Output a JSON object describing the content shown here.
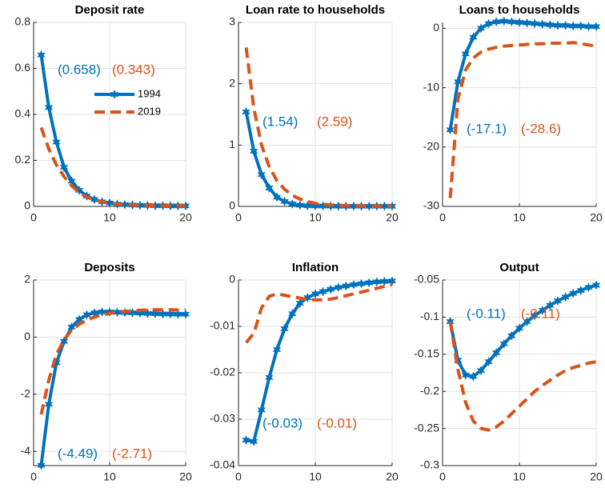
{
  "chart_data": [
    {
      "type": "line",
      "title": "Deposit rate",
      "x": [
        1,
        2,
        3,
        4,
        5,
        6,
        7,
        8,
        9,
        10,
        11,
        12,
        13,
        14,
        15,
        16,
        17,
        18,
        19,
        20
      ],
      "xlim": [
        0,
        20
      ],
      "xticks": [
        0,
        10,
        20
      ],
      "ylim": [
        0,
        0.8
      ],
      "yticks": [
        0,
        0.2,
        0.4,
        0.6,
        0.8
      ],
      "grid": true,
      "legend": "right",
      "series": [
        {
          "name": "1994",
          "color": "#0072BD",
          "marker": "star",
          "linestyle": "solid",
          "values": [
            0.658,
            0.43,
            0.28,
            0.17,
            0.11,
            0.07,
            0.045,
            0.03,
            0.02,
            0.015,
            0.01,
            0.008,
            0.006,
            0.005,
            0.004,
            0.003,
            0.003,
            0.002,
            0.002,
            0.002
          ]
        },
        {
          "name": "2019",
          "color": "#D95319",
          "linestyle": "dashed",
          "values": [
            0.343,
            0.25,
            0.18,
            0.13,
            0.09,
            0.06,
            0.04,
            0.03,
            0.02,
            0.015,
            0.01,
            0.008,
            0.006,
            0.005,
            0.004,
            0.003,
            0.003,
            0.002,
            0.002,
            0.002
          ]
        }
      ],
      "annotations": [
        "(0.658)",
        "(0.343)"
      ]
    },
    {
      "type": "line",
      "title": "Loan rate to households",
      "x": [
        1,
        2,
        3,
        4,
        5,
        6,
        7,
        8,
        9,
        10,
        11,
        12,
        13,
        14,
        15,
        16,
        17,
        18,
        19,
        20
      ],
      "xlim": [
        0,
        20
      ],
      "xticks": [
        0,
        10,
        20
      ],
      "ylim": [
        0,
        3
      ],
      "yticks": [
        0,
        1,
        2,
        3
      ],
      "grid": true,
      "series": [
        {
          "color": "#0072BD",
          "marker": "star",
          "linestyle": "solid",
          "values": [
            1.54,
            0.9,
            0.52,
            0.3,
            0.15,
            0.08,
            0.04,
            0.02,
            0.01,
            0.008,
            0.006,
            0.005,
            0.004,
            0.003,
            0.003,
            0.002,
            0.002,
            0.002,
            0.002,
            0.002
          ]
        },
        {
          "color": "#D95319",
          "linestyle": "dashed",
          "values": [
            2.59,
            1.6,
            1.0,
            0.65,
            0.42,
            0.28,
            0.18,
            0.12,
            0.08,
            0.05,
            0.035,
            0.025,
            0.02,
            0.015,
            0.01,
            0.008,
            0.006,
            0.005,
            0.004,
            0.003
          ]
        }
      ],
      "annotations": [
        "(1.54)",
        "(2.59)"
      ]
    },
    {
      "type": "line",
      "title": "Loans to households",
      "x": [
        1,
        2,
        3,
        4,
        5,
        6,
        7,
        8,
        9,
        10,
        11,
        12,
        13,
        14,
        15,
        16,
        17,
        18,
        19,
        20
      ],
      "xlim": [
        0,
        20
      ],
      "xticks": [
        0,
        10,
        20
      ],
      "ylim": [
        -30,
        1
      ],
      "yticks": [
        -30,
        -20,
        -10,
        0
      ],
      "grid": true,
      "series": [
        {
          "color": "#0072BD",
          "marker": "star",
          "linestyle": "solid",
          "values": [
            -17.1,
            -9,
            -4.3,
            -1.5,
            0,
            0.8,
            1.1,
            1.2,
            1.1,
            1.0,
            0.9,
            0.8,
            0.7,
            0.6,
            0.5,
            0.5,
            0.4,
            0.4,
            0.3,
            0.3
          ]
        },
        {
          "color": "#D95319",
          "linestyle": "dashed",
          "values": [
            -28.6,
            -12,
            -7,
            -5,
            -4,
            -3.5,
            -3.2,
            -3,
            -2.9,
            -2.8,
            -2.7,
            -2.6,
            -2.6,
            -2.5,
            -2.5,
            -2.5,
            -2.4,
            -2.6,
            -2.8,
            -3
          ]
        }
      ],
      "annotations": [
        "(-17.1)",
        "(-28.6)"
      ]
    },
    {
      "type": "line",
      "title": "Deposits",
      "x": [
        1,
        2,
        3,
        4,
        5,
        6,
        7,
        8,
        9,
        10,
        11,
        12,
        13,
        14,
        15,
        16,
        17,
        18,
        19,
        20
      ],
      "xlim": [
        0,
        20
      ],
      "xticks": [
        0,
        10,
        20
      ],
      "ylim": [
        -4.5,
        2
      ],
      "yticks": [
        -4,
        -2,
        0,
        2
      ],
      "grid": true,
      "series": [
        {
          "color": "#0072BD",
          "marker": "star",
          "linestyle": "solid",
          "values": [
            -4.49,
            -2.35,
            -0.9,
            -0.15,
            0.35,
            0.62,
            0.78,
            0.85,
            0.88,
            0.88,
            0.87,
            0.86,
            0.85,
            0.84,
            0.83,
            0.82,
            0.81,
            0.81,
            0.8,
            0.8
          ]
        },
        {
          "color": "#D95319",
          "linestyle": "dashed",
          "values": [
            -2.71,
            -1.5,
            -0.6,
            -0.1,
            0.25,
            0.45,
            0.6,
            0.7,
            0.78,
            0.83,
            0.87,
            0.9,
            0.92,
            0.94,
            0.95,
            0.96,
            0.96,
            0.96,
            0.95,
            0.95
          ]
        }
      ],
      "annotations": [
        "(-4.49)",
        "(-2.71)"
      ]
    },
    {
      "type": "line",
      "title": "Inflation",
      "x": [
        1,
        2,
        3,
        4,
        5,
        6,
        7,
        8,
        9,
        10,
        11,
        12,
        13,
        14,
        15,
        16,
        17,
        18,
        19,
        20
      ],
      "xlim": [
        0,
        20
      ],
      "xticks": [
        0,
        10,
        20
      ],
      "ylim": [
        -0.04,
        0
      ],
      "yticks": [
        -0.04,
        -0.03,
        -0.02,
        -0.01,
        0
      ],
      "grid": true,
      "series": [
        {
          "color": "#0072BD",
          "marker": "star",
          "linestyle": "solid",
          "values": [
            -0.0345,
            -0.0348,
            -0.028,
            -0.021,
            -0.015,
            -0.0105,
            -0.0073,
            -0.005,
            -0.0038,
            -0.003,
            -0.0025,
            -0.002,
            -0.0016,
            -0.0013,
            -0.001,
            -0.0008,
            -0.0006,
            -0.0004,
            -0.0003,
            -0.0002
          ]
        },
        {
          "color": "#D95319",
          "linestyle": "dashed",
          "values": [
            -0.0135,
            -0.0115,
            -0.006,
            -0.0035,
            -0.003,
            -0.0033,
            -0.0036,
            -0.0039,
            -0.0042,
            -0.0043,
            -0.0043,
            -0.0041,
            -0.0038,
            -0.0034,
            -0.003,
            -0.0026,
            -0.0022,
            -0.0018,
            -0.0014,
            -0.001
          ]
        }
      ],
      "annotations": [
        "(-0.03)",
        "(-0.01)"
      ]
    },
    {
      "type": "line",
      "title": "Output",
      "x": [
        1,
        2,
        3,
        4,
        5,
        6,
        7,
        8,
        9,
        10,
        11,
        12,
        13,
        14,
        15,
        16,
        17,
        18,
        19,
        20
      ],
      "xlim": [
        0,
        20
      ],
      "xticks": [
        0,
        10,
        20
      ],
      "ylim": [
        -0.3,
        -0.05
      ],
      "yticks": [
        -0.3,
        -0.25,
        -0.2,
        -0.15,
        -0.1,
        -0.05
      ],
      "grid": true,
      "series": [
        {
          "color": "#0072BD",
          "marker": "star",
          "linestyle": "solid",
          "values": [
            -0.106,
            -0.158,
            -0.178,
            -0.18,
            -0.172,
            -0.16,
            -0.148,
            -0.136,
            -0.125,
            -0.115,
            -0.106,
            -0.098,
            -0.091,
            -0.084,
            -0.078,
            -0.073,
            -0.068,
            -0.064,
            -0.06,
            -0.057
          ]
        },
        {
          "color": "#D95319",
          "linestyle": "dashed",
          "values": [
            -0.106,
            -0.17,
            -0.215,
            -0.24,
            -0.25,
            -0.252,
            -0.248,
            -0.24,
            -0.23,
            -0.22,
            -0.21,
            -0.2,
            -0.192,
            -0.185,
            -0.178,
            -0.172,
            -0.168,
            -0.165,
            -0.162,
            -0.16
          ]
        }
      ],
      "annotations": [
        "(-0.11)",
        "(-0.11)"
      ]
    }
  ]
}
